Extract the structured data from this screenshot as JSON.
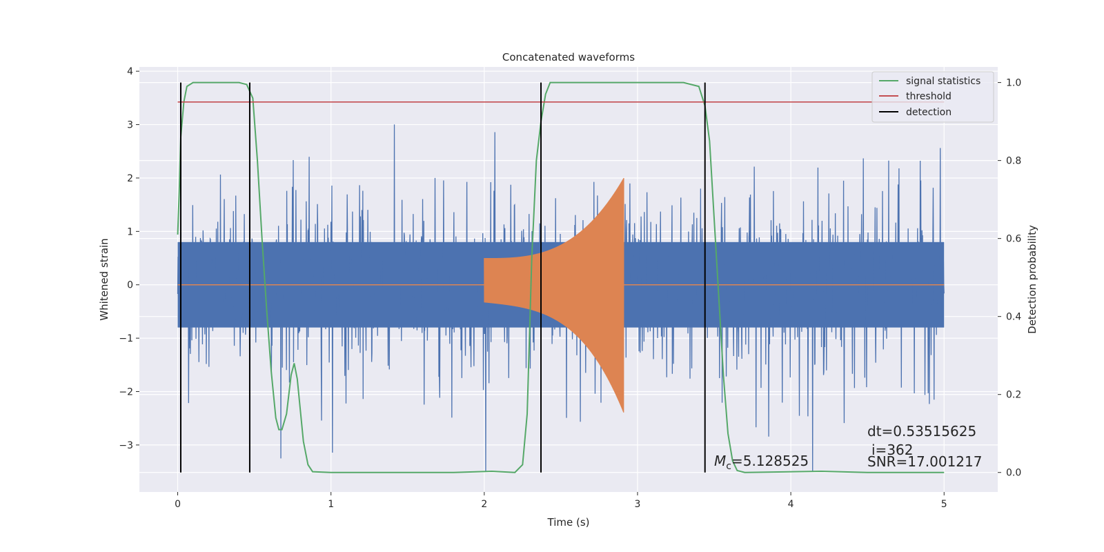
{
  "chart_data": {
    "type": "line",
    "title": "Concatenated waveforms",
    "xlabel": "Time (s)",
    "ylabel": "Whitened strain",
    "ylabel_right": "Detection probability",
    "xlim": [
      -0.25,
      5.35
    ],
    "ylim": [
      -3.88,
      4.08
    ],
    "ylim_right": [
      -0.05,
      1.04
    ],
    "x_ticks": [
      0,
      1,
      2,
      3,
      4,
      5
    ],
    "y_ticks": [
      -3,
      -2,
      -1,
      0,
      1,
      2,
      3,
      4
    ],
    "y_ticks_right": [
      0.0,
      0.2,
      0.4,
      0.6,
      0.8,
      1.0
    ],
    "x_tick_labels": [
      "0",
      "1",
      "2",
      "3",
      "4",
      "5"
    ],
    "y_tick_labels": [
      "−3",
      "−2",
      "−1",
      "0",
      "1",
      "2",
      "3",
      "4"
    ],
    "y_tick_labels_right": [
      "0.0",
      "0.2",
      "0.4",
      "0.6",
      "0.8",
      "1.0"
    ],
    "grid": true,
    "legend_position": "top-right",
    "legend": [
      "signal statistics",
      "threshold",
      "detection"
    ],
    "series": [
      {
        "name": "whitened strain",
        "axis": "left",
        "color": "#4c72b0",
        "x_range": [
          0,
          5
        ],
        "envelope": 0.8,
        "peak_max": 3.2,
        "peak_min": -3.5
      },
      {
        "name": "waveform",
        "axis": "left",
        "color": "#dd8452",
        "x_range": [
          0,
          5
        ],
        "signal_start": 2.0,
        "signal_end": 2.91,
        "amplitude_start": 0.5,
        "amplitude_peak": 2.0,
        "amplitude_min": -2.4
      },
      {
        "name": "signal statistics",
        "axis": "right",
        "color": "#55a868",
        "points": [
          [
            0.0,
            0.61
          ],
          [
            0.01,
            0.72
          ],
          [
            0.02,
            0.86
          ],
          [
            0.04,
            0.95
          ],
          [
            0.06,
            0.99
          ],
          [
            0.1,
            1.0
          ],
          [
            0.4,
            1.0
          ],
          [
            0.45,
            0.995
          ],
          [
            0.49,
            0.96
          ],
          [
            0.52,
            0.8
          ],
          [
            0.55,
            0.6
          ],
          [
            0.58,
            0.42
          ],
          [
            0.61,
            0.26
          ],
          [
            0.64,
            0.14
          ],
          [
            0.66,
            0.11
          ],
          [
            0.68,
            0.11
          ],
          [
            0.71,
            0.15
          ],
          [
            0.74,
            0.25
          ],
          [
            0.76,
            0.28
          ],
          [
            0.78,
            0.24
          ],
          [
            0.8,
            0.16
          ],
          [
            0.82,
            0.08
          ],
          [
            0.85,
            0.02
          ],
          [
            0.88,
            0.002
          ],
          [
            1.0,
            0.0
          ],
          [
            1.8,
            0.0
          ],
          [
            2.05,
            0.003
          ],
          [
            2.2,
            0.0
          ],
          [
            2.25,
            0.02
          ],
          [
            2.28,
            0.15
          ],
          [
            2.31,
            0.55
          ],
          [
            2.34,
            0.8
          ],
          [
            2.37,
            0.9
          ],
          [
            2.4,
            0.97
          ],
          [
            2.43,
            1.0
          ],
          [
            3.3,
            1.0
          ],
          [
            3.4,
            0.99
          ],
          [
            3.44,
            0.94
          ],
          [
            3.47,
            0.85
          ],
          [
            3.5,
            0.65
          ],
          [
            3.53,
            0.45
          ],
          [
            3.56,
            0.25
          ],
          [
            3.59,
            0.1
          ],
          [
            3.62,
            0.03
          ],
          [
            3.65,
            0.005
          ],
          [
            3.7,
            0.0
          ],
          [
            4.2,
            0.003
          ],
          [
            4.5,
            0.0
          ],
          [
            5.0,
            0.0
          ]
        ]
      },
      {
        "name": "threshold",
        "axis": "right",
        "color": "#c44e52",
        "y": 0.95,
        "x_range": [
          0,
          5
        ]
      },
      {
        "name": "detection",
        "axis": "right",
        "color": "#000000",
        "lines_x": [
          0.02,
          0.47,
          2.37,
          3.44
        ],
        "y_range": [
          0.0,
          1.0
        ]
      }
    ],
    "annotations": {
      "mc_symbol": "M",
      "mc_subscript": "c",
      "mc_value": "=5.128525",
      "dt": "dt=0.53515625",
      "i": "i=362",
      "snr": "SNR=17.001217"
    }
  }
}
